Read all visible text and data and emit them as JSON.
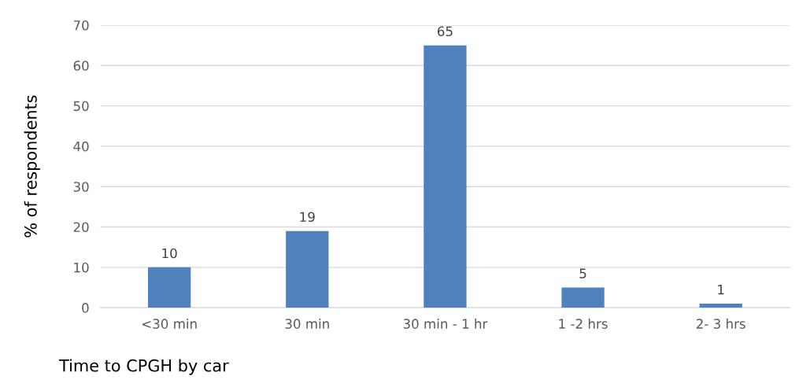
{
  "chart_data": {
    "type": "bar",
    "xlabel": "Time to CPGH by car",
    "ylabel": "% of respondents",
    "categories": [
      "<30 min",
      "30 min",
      "30 min - 1 hr",
      "1 -2 hrs",
      "2- 3 hrs"
    ],
    "values": [
      10,
      19,
      65,
      5,
      1
    ],
    "color": "#4f81bd",
    "ylim": [
      0,
      70
    ],
    "yticks": [
      0,
      10,
      20,
      30,
      40,
      50,
      60,
      70
    ],
    "grid": "y",
    "data_labels": true
  }
}
